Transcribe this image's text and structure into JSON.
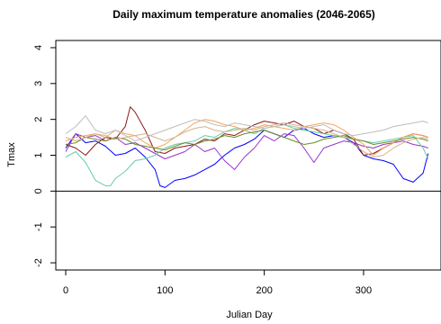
{
  "chart_data": {
    "type": "line",
    "title": "Daily maximum temperature anomalies (2046-2065)",
    "xlabel": "Julian Day",
    "ylabel": "Tmax",
    "xlim": [
      -10,
      378
    ],
    "ylim": [
      -2.2,
      4.2
    ],
    "x_ticks": [
      0,
      100,
      200,
      300
    ],
    "y_ticks": [
      -2,
      -1,
      0,
      1,
      2,
      3,
      4
    ],
    "reference_line_y": 0,
    "grid": false,
    "legend": "none",
    "series": [
      {
        "color": "#0000ff",
        "x": [
          0,
          10,
          20,
          30,
          40,
          50,
          60,
          70,
          80,
          90,
          95,
          100,
          110,
          120,
          130,
          140,
          150,
          160,
          170,
          180,
          190,
          200,
          210,
          220,
          230,
          240,
          250,
          260,
          270,
          280,
          290,
          300,
          310,
          320,
          330,
          340,
          350,
          360,
          365
        ],
        "values": [
          1.2,
          1.6,
          1.35,
          1.4,
          1.25,
          1.0,
          1.05,
          1.2,
          0.95,
          0.6,
          0.15,
          0.1,
          0.3,
          0.35,
          0.45,
          0.6,
          0.75,
          1.0,
          1.2,
          1.3,
          1.45,
          1.7,
          1.6,
          1.5,
          1.7,
          1.75,
          1.6,
          1.5,
          1.55,
          1.5,
          1.35,
          1.0,
          0.9,
          0.85,
          0.75,
          0.35,
          0.25,
          0.5,
          1.05
        ]
      },
      {
        "color": "#9932cc",
        "x": [
          0,
          10,
          20,
          30,
          40,
          50,
          60,
          70,
          80,
          90,
          100,
          110,
          120,
          130,
          140,
          150,
          160,
          170,
          180,
          190,
          200,
          210,
          220,
          230,
          240,
          250,
          260,
          270,
          280,
          290,
          300,
          310,
          320,
          330,
          340,
          350,
          360,
          365
        ],
        "values": [
          1.1,
          1.6,
          1.5,
          1.55,
          1.4,
          1.5,
          1.3,
          1.35,
          1.2,
          1.05,
          0.9,
          1.0,
          1.1,
          1.3,
          1.1,
          1.2,
          0.85,
          0.6,
          0.95,
          1.2,
          1.55,
          1.4,
          1.6,
          1.55,
          1.2,
          0.8,
          1.2,
          1.3,
          1.4,
          1.35,
          1.25,
          1.2,
          1.3,
          1.35,
          1.4,
          1.3,
          1.25,
          1.2
        ]
      },
      {
        "color": "#8b1a1a",
        "x": [
          0,
          10,
          20,
          30,
          40,
          50,
          60,
          65,
          70,
          80,
          90,
          100,
          110,
          120,
          130,
          140,
          150,
          160,
          170,
          180,
          190,
          200,
          210,
          220,
          230,
          240,
          250,
          260,
          270,
          280,
          290,
          300,
          310,
          320,
          330,
          340,
          350,
          360,
          365
        ],
        "values": [
          1.3,
          1.2,
          1.0,
          1.3,
          1.5,
          1.45,
          1.8,
          2.35,
          2.2,
          1.7,
          1.1,
          1.05,
          1.2,
          1.25,
          1.3,
          1.45,
          1.4,
          1.6,
          1.55,
          1.7,
          1.85,
          1.95,
          1.9,
          1.85,
          1.95,
          1.8,
          1.75,
          1.6,
          1.7,
          1.6,
          1.45,
          1.0,
          1.05,
          1.2,
          1.35,
          1.5,
          1.6,
          1.55,
          1.5
        ]
      },
      {
        "color": "#66cdaa",
        "x": [
          0,
          10,
          20,
          30,
          40,
          45,
          50,
          60,
          70,
          80,
          90,
          100,
          110,
          120,
          130,
          140,
          150,
          160,
          170,
          180,
          190,
          200,
          210,
          220,
          230,
          240,
          250,
          260,
          270,
          280,
          290,
          300,
          310,
          320,
          330,
          340,
          350,
          360,
          365
        ],
        "values": [
          0.95,
          1.1,
          0.8,
          0.3,
          0.15,
          0.15,
          0.35,
          0.55,
          0.85,
          0.9,
          1.0,
          1.2,
          1.3,
          1.35,
          1.4,
          1.55,
          1.5,
          1.65,
          1.75,
          1.7,
          1.6,
          1.75,
          1.8,
          1.85,
          1.75,
          1.7,
          1.65,
          1.6,
          1.55,
          1.5,
          1.45,
          1.4,
          1.35,
          1.4,
          1.45,
          1.5,
          1.55,
          1.2,
          0.9
        ]
      },
      {
        "color": "#f4a460",
        "x": [
          0,
          10,
          20,
          30,
          40,
          50,
          60,
          70,
          80,
          90,
          100,
          110,
          120,
          130,
          140,
          150,
          160,
          170,
          180,
          190,
          200,
          210,
          220,
          230,
          240,
          250,
          260,
          270,
          280,
          290,
          300,
          310,
          320,
          330,
          340,
          350,
          360,
          365
        ],
        "values": [
          1.4,
          1.5,
          1.55,
          1.6,
          1.5,
          1.7,
          1.6,
          1.55,
          1.35,
          1.2,
          1.3,
          1.5,
          1.7,
          1.9,
          2.0,
          1.95,
          1.85,
          1.8,
          1.7,
          1.75,
          1.85,
          1.8,
          1.75,
          1.7,
          1.8,
          1.85,
          1.9,
          1.85,
          1.7,
          1.5,
          1.3,
          1.0,
          1.2,
          1.35,
          1.5,
          1.6,
          1.55,
          1.5
        ]
      },
      {
        "color": "#bebebe",
        "x": [
          0,
          10,
          20,
          30,
          40,
          50,
          60,
          70,
          80,
          90,
          100,
          110,
          120,
          130,
          140,
          150,
          160,
          170,
          180,
          190,
          200,
          210,
          220,
          230,
          240,
          250,
          260,
          270,
          280,
          290,
          300,
          310,
          320,
          330,
          340,
          350,
          360,
          365
        ],
        "values": [
          1.6,
          1.8,
          2.1,
          1.7,
          1.6,
          1.7,
          1.55,
          1.4,
          1.5,
          1.6,
          1.7,
          1.8,
          1.9,
          2.0,
          1.95,
          1.85,
          1.8,
          1.9,
          1.85,
          1.8,
          1.75,
          1.8,
          1.85,
          1.8,
          1.75,
          1.8,
          1.85,
          1.7,
          1.6,
          1.55,
          1.6,
          1.65,
          1.7,
          1.8,
          1.85,
          1.9,
          1.95,
          1.9
        ]
      },
      {
        "color": "#6b8e23",
        "x": [
          0,
          10,
          20,
          30,
          40,
          50,
          60,
          70,
          80,
          90,
          100,
          110,
          120,
          130,
          140,
          150,
          160,
          170,
          180,
          190,
          200,
          210,
          220,
          230,
          240,
          250,
          260,
          270,
          280,
          290,
          300,
          310,
          320,
          330,
          340,
          350,
          360,
          365
        ],
        "values": [
          1.3,
          1.35,
          1.5,
          1.45,
          1.4,
          1.5,
          1.45,
          1.3,
          1.25,
          1.2,
          1.15,
          1.25,
          1.35,
          1.3,
          1.4,
          1.45,
          1.55,
          1.5,
          1.6,
          1.65,
          1.7,
          1.6,
          1.5,
          1.4,
          1.3,
          1.35,
          1.45,
          1.5,
          1.55,
          1.45,
          1.4,
          1.3,
          1.35,
          1.4,
          1.45,
          1.5,
          1.45,
          1.4
        ]
      },
      {
        "color": "#d2b48c",
        "x": [
          0,
          10,
          20,
          30,
          40,
          50,
          60,
          70,
          80,
          90,
          100,
          110,
          120,
          130,
          140,
          150,
          160,
          170,
          180,
          190,
          200,
          210,
          220,
          230,
          240,
          250,
          260,
          270,
          280,
          290,
          300,
          310,
          320,
          330,
          340,
          350,
          360,
          365
        ],
        "values": [
          1.5,
          1.4,
          1.5,
          1.6,
          1.55,
          1.45,
          1.5,
          1.55,
          1.6,
          1.5,
          1.4,
          1.5,
          1.65,
          1.75,
          1.8,
          1.7,
          1.65,
          1.7,
          1.75,
          1.7,
          1.8,
          1.85,
          1.9,
          1.85,
          1.8,
          1.75,
          1.7,
          1.6,
          1.5,
          1.3,
          1.1,
          0.95,
          1.0,
          1.2,
          1.35,
          1.45,
          1.5,
          1.45
        ]
      }
    ]
  }
}
